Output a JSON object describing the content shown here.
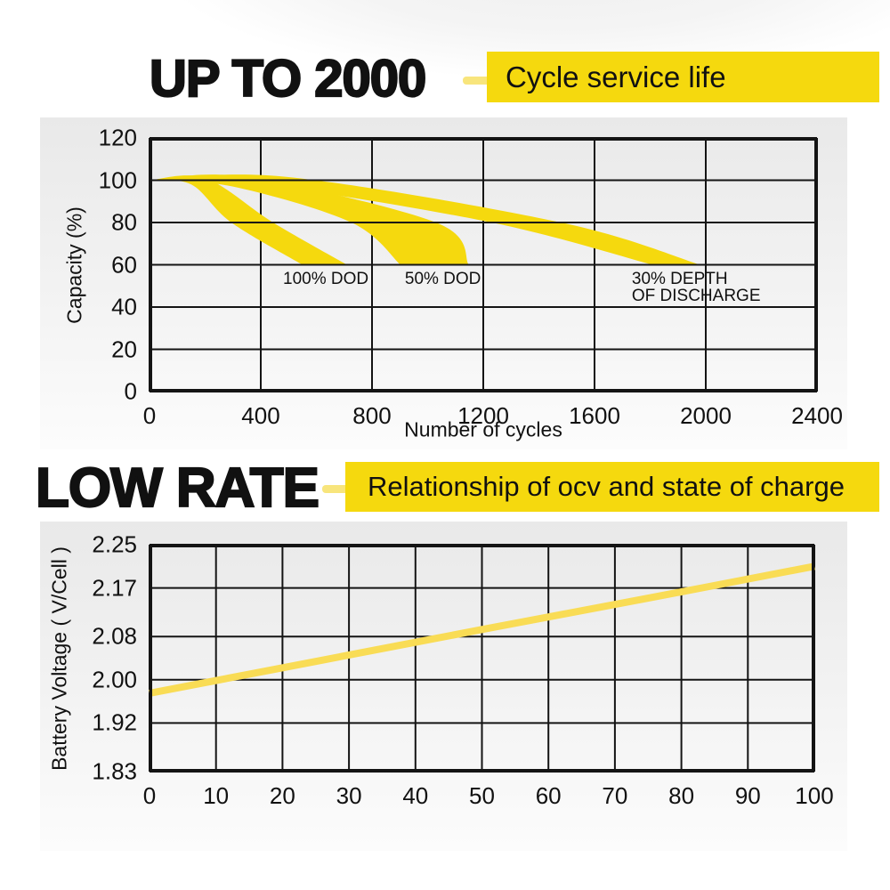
{
  "colors": {
    "accent_yellow": "#F5D90E",
    "dash_yellow": "#F8E57C",
    "line_yellow": "#F9DC55",
    "grid_black": "#141414",
    "text": "#111111",
    "panel_grey_top": "#E9E9E9",
    "panel_grey_bottom": "#FCFCFC"
  },
  "section1": {
    "title": "UP TO 2000",
    "tagline": "Cycle service life"
  },
  "section2": {
    "title": "LOW RATE",
    "tagline": "Relationship of ocv and state of charge"
  },
  "chart_data": [
    {
      "id": "cycle",
      "type": "area",
      "title": "Cycle service life",
      "xlabel": "Number of cycles",
      "ylabel": "Capacity (%)",
      "xlim": [
        0,
        2400
      ],
      "ylim": [
        0,
        120
      ],
      "grid": true,
      "legend": "none",
      "xticks": [
        0,
        400,
        800,
        1200,
        1600,
        2000,
        2400
      ],
      "xtick_labels": [
        "0",
        "400",
        "800",
        "1200",
        "1600",
        "2000",
        "2400"
      ],
      "yticks": [
        0,
        20,
        40,
        60,
        80,
        100,
        120
      ],
      "ytick_labels": [
        "0",
        "20",
        "40",
        "60",
        "80",
        "100",
        "120"
      ],
      "bands": [
        {
          "name": "100% DOD",
          "start_capacity": 100,
          "end_capacity": 60,
          "upper": [
            [
              0,
              100
            ],
            [
              200,
              101
            ],
            [
              444,
              80
            ],
            [
              710,
              60
            ]
          ],
          "lower": [
            [
              0,
              100
            ],
            [
              150,
              98
            ],
            [
              294,
              80
            ],
            [
              550,
              60
            ]
          ]
        },
        {
          "name": "50% DOD",
          "start_capacity": 100,
          "end_capacity": 60,
          "upper": [
            [
              0,
              100
            ],
            [
              350,
              101.5
            ],
            [
              1030,
              80
            ],
            [
              1148,
              60
            ]
          ],
          "lower": [
            [
              0,
              100
            ],
            [
              300,
              97
            ],
            [
              726,
              80
            ],
            [
              902,
              60
            ]
          ]
        },
        {
          "name": "30% DEPTH OF DISCHARGE",
          "start_capacity": 100,
          "end_capacity": 60,
          "upper": [
            [
              0,
              100
            ],
            [
              500,
              101.5
            ],
            [
              1480,
              80
            ],
            [
              1980,
              60
            ]
          ],
          "lower": [
            [
              0,
              100
            ],
            [
              400,
              98
            ],
            [
              1230,
              80
            ],
            [
              1808,
              60
            ]
          ]
        }
      ],
      "annotations": [
        {
          "text": "100% DOD",
          "x": 480,
          "y": 57.3
        },
        {
          "text": "50% DOD",
          "x": 918,
          "y": 57.3
        },
        {
          "text": "30% DEPTH\nOF DISCHARGE",
          "x": 1734,
          "y": 57.3
        }
      ]
    },
    {
      "id": "ocv",
      "type": "line",
      "title": "Relationship of ocv and state of charge",
      "xlabel": "",
      "ylabel": "Battery Voltage ( V/Cell )",
      "xlim": [
        0,
        100
      ],
      "ylim": [
        1.83,
        2.25
      ],
      "grid": true,
      "legend": "none",
      "xticks": [
        0,
        10,
        20,
        30,
        40,
        50,
        60,
        70,
        80,
        90,
        100
      ],
      "xtick_labels": [
        "0",
        "10",
        "20",
        "30",
        "40",
        "50",
        "60",
        "70",
        "80",
        "90",
        "100"
      ],
      "yticks": [
        1.83,
        1.92,
        2.0,
        2.08,
        2.17,
        2.25
      ],
      "ytick_labels": [
        "1.83",
        "1.92",
        "2.00",
        "2.08",
        "2.17",
        "2.25"
      ],
      "series": [
        {
          "name": "ocv",
          "points": [
            [
              0,
              1.975
            ],
            [
              25,
              2.034
            ],
            [
              50,
              2.093
            ],
            [
              75,
              2.151
            ],
            [
              100,
              2.21
            ]
          ]
        }
      ]
    }
  ]
}
